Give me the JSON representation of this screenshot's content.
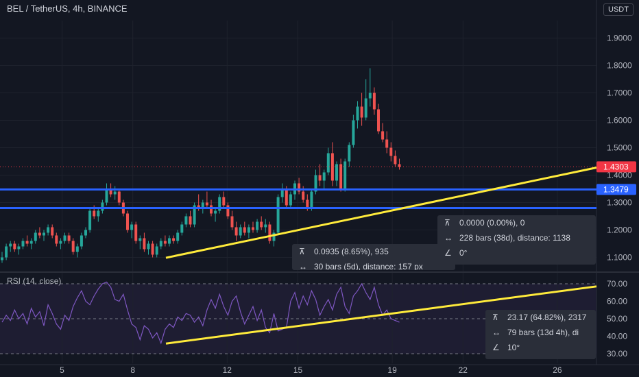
{
  "header": {
    "symbol_title": "BEL / TetherUS, 4h, BINANCE",
    "currency_button": "USDT"
  },
  "rsi": {
    "title": "RSI (14, close)"
  },
  "measurements": [
    {
      "price_change": "0.0935 (8.65%), 935",
      "range": "30 bars (5d), distance: 157 px",
      "angle": ""
    },
    {
      "price_change": "0.0000 (0.00%), 0",
      "range": "228 bars (38d), distance: 1138",
      "angle": "0°"
    },
    {
      "price_change": "23.17 (64.82%), 2317",
      "range": "79 bars (13d 4h), di",
      "angle": "10°"
    }
  ],
  "colors": {
    "bg": "#131722",
    "up": "#26a69a",
    "down": "#ef5350",
    "level_line": "#2962ff",
    "trendline": "#ffeb3b",
    "rsi_line": "#7e57c2",
    "last_price": "#f23645"
  },
  "chart_data": [
    {
      "type": "candlestick",
      "title": "BEL / TetherUS, 4h, BINANCE",
      "yaxis_ticks": [
        "1.9000",
        "1.8000",
        "1.7000",
        "1.6000",
        "1.5000",
        "1.4000",
        "1.3000",
        "1.2000",
        "1.1000"
      ],
      "ylim": [
        1.05,
        1.95
      ],
      "xaxis_ticks": [
        "5",
        "8",
        "12",
        "15",
        "19",
        "22",
        "26"
      ],
      "last_price": 1.4303,
      "horizontal_levels": [
        1.3479,
        1.28
      ],
      "price_labels": [
        "1.4303",
        "1.3479"
      ],
      "trendline": {
        "from": [
          "Nov 9",
          1.0985
        ],
        "to": [
          "Nov 28",
          1.4275
        ]
      },
      "candles": [
        [
          1.09,
          1.12,
          1.08,
          1.1
        ],
        [
          1.1,
          1.15,
          1.09,
          1.14
        ],
        [
          1.14,
          1.16,
          1.12,
          1.15
        ],
        [
          1.15,
          1.16,
          1.12,
          1.13
        ],
        [
          1.13,
          1.15,
          1.11,
          1.14
        ],
        [
          1.14,
          1.17,
          1.13,
          1.16
        ],
        [
          1.16,
          1.18,
          1.14,
          1.15
        ],
        [
          1.15,
          1.17,
          1.13,
          1.16
        ],
        [
          1.16,
          1.2,
          1.15,
          1.19
        ],
        [
          1.19,
          1.21,
          1.17,
          1.18
        ],
        [
          1.18,
          1.2,
          1.16,
          1.19
        ],
        [
          1.19,
          1.22,
          1.18,
          1.21
        ],
        [
          1.21,
          1.22,
          1.17,
          1.18
        ],
        [
          1.18,
          1.19,
          1.14,
          1.15
        ],
        [
          1.15,
          1.17,
          1.13,
          1.16
        ],
        [
          1.16,
          1.19,
          1.15,
          1.18
        ],
        [
          1.18,
          1.19,
          1.15,
          1.16
        ],
        [
          1.16,
          1.17,
          1.11,
          1.12
        ],
        [
          1.12,
          1.15,
          1.1,
          1.14
        ],
        [
          1.14,
          1.19,
          1.13,
          1.18
        ],
        [
          1.18,
          1.21,
          1.17,
          1.2
        ],
        [
          1.2,
          1.28,
          1.19,
          1.27
        ],
        [
          1.27,
          1.29,
          1.24,
          1.25
        ],
        [
          1.25,
          1.28,
          1.23,
          1.27
        ],
        [
          1.27,
          1.31,
          1.26,
          1.3
        ],
        [
          1.3,
          1.37,
          1.29,
          1.35
        ],
        [
          1.35,
          1.37,
          1.32,
          1.33
        ],
        [
          1.33,
          1.36,
          1.31,
          1.34
        ],
        [
          1.34,
          1.35,
          1.29,
          1.3
        ],
        [
          1.3,
          1.31,
          1.25,
          1.26
        ],
        [
          1.26,
          1.27,
          1.19,
          1.2
        ],
        [
          1.2,
          1.23,
          1.17,
          1.22
        ],
        [
          1.22,
          1.23,
          1.15,
          1.16
        ],
        [
          1.16,
          1.18,
          1.13,
          1.17
        ],
        [
          1.17,
          1.19,
          1.12,
          1.13
        ],
        [
          1.13,
          1.16,
          1.11,
          1.15
        ],
        [
          1.15,
          1.16,
          1.1,
          1.11
        ],
        [
          1.11,
          1.15,
          1.1,
          1.14
        ],
        [
          1.14,
          1.17,
          1.13,
          1.16
        ],
        [
          1.16,
          1.18,
          1.14,
          1.15
        ],
        [
          1.15,
          1.18,
          1.14,
          1.17
        ],
        [
          1.17,
          1.18,
          1.15,
          1.16
        ],
        [
          1.16,
          1.2,
          1.15,
          1.19
        ],
        [
          1.19,
          1.23,
          1.18,
          1.22
        ],
        [
          1.22,
          1.26,
          1.21,
          1.25
        ],
        [
          1.25,
          1.27,
          1.21,
          1.22
        ],
        [
          1.22,
          1.3,
          1.21,
          1.29
        ],
        [
          1.29,
          1.33,
          1.27,
          1.28
        ],
        [
          1.28,
          1.31,
          1.26,
          1.3
        ],
        [
          1.3,
          1.34,
          1.28,
          1.29
        ],
        [
          1.29,
          1.31,
          1.25,
          1.26
        ],
        [
          1.26,
          1.28,
          1.23,
          1.27
        ],
        [
          1.27,
          1.33,
          1.26,
          1.32
        ],
        [
          1.32,
          1.34,
          1.28,
          1.29
        ],
        [
          1.29,
          1.3,
          1.24,
          1.25
        ],
        [
          1.25,
          1.27,
          1.2,
          1.21
        ],
        [
          1.21,
          1.23,
          1.16,
          1.18
        ],
        [
          1.18,
          1.22,
          1.17,
          1.21
        ],
        [
          1.21,
          1.23,
          1.18,
          1.19
        ],
        [
          1.19,
          1.22,
          1.17,
          1.21
        ],
        [
          1.21,
          1.23,
          1.19,
          1.2
        ],
        [
          1.2,
          1.24,
          1.19,
          1.23
        ],
        [
          1.23,
          1.25,
          1.2,
          1.21
        ],
        [
          1.21,
          1.24,
          1.19,
          1.22
        ],
        [
          1.22,
          1.23,
          1.15,
          1.16
        ],
        [
          1.16,
          1.2,
          1.14,
          1.19
        ],
        [
          1.19,
          1.33,
          1.18,
          1.32
        ],
        [
          1.32,
          1.37,
          1.3,
          1.35
        ],
        [
          1.35,
          1.36,
          1.28,
          1.29
        ],
        [
          1.29,
          1.34,
          1.28,
          1.33
        ],
        [
          1.33,
          1.38,
          1.31,
          1.37
        ],
        [
          1.37,
          1.39,
          1.33,
          1.34
        ],
        [
          1.34,
          1.36,
          1.3,
          1.31
        ],
        [
          1.31,
          1.33,
          1.27,
          1.28
        ],
        [
          1.28,
          1.35,
          1.27,
          1.34
        ],
        [
          1.34,
          1.42,
          1.33,
          1.4
        ],
        [
          1.4,
          1.44,
          1.36,
          1.38
        ],
        [
          1.38,
          1.42,
          1.35,
          1.41
        ],
        [
          1.41,
          1.5,
          1.4,
          1.48
        ],
        [
          1.48,
          1.52,
          1.36,
          1.38
        ],
        [
          1.38,
          1.45,
          1.36,
          1.44
        ],
        [
          1.44,
          1.46,
          1.34,
          1.35
        ],
        [
          1.35,
          1.46,
          1.34,
          1.45
        ],
        [
          1.45,
          1.52,
          1.43,
          1.51
        ],
        [
          1.51,
          1.62,
          1.5,
          1.6
        ],
        [
          1.6,
          1.67,
          1.57,
          1.65
        ],
        [
          1.65,
          1.7,
          1.58,
          1.61
        ],
        [
          1.61,
          1.75,
          1.6,
          1.68
        ],
        [
          1.68,
          1.79,
          1.65,
          1.7
        ],
        [
          1.7,
          1.72,
          1.62,
          1.64
        ],
        [
          1.64,
          1.66,
          1.55,
          1.56
        ],
        [
          1.56,
          1.59,
          1.52,
          1.53
        ],
        [
          1.53,
          1.56,
          1.48,
          1.5
        ],
        [
          1.5,
          1.52,
          1.45,
          1.47
        ],
        [
          1.47,
          1.49,
          1.43,
          1.44
        ],
        [
          1.44,
          1.46,
          1.42,
          1.43
        ]
      ]
    },
    {
      "type": "line",
      "title": "RSI (14, close)",
      "yaxis_ticks": [
        "70.00",
        "60.00",
        "50.00",
        "40.00",
        "30.00"
      ],
      "ylim": [
        25,
        75
      ],
      "bands": [
        70,
        50,
        30
      ],
      "values": [
        48,
        52,
        49,
        55,
        50,
        53,
        47,
        56,
        51,
        54,
        46,
        58,
        53,
        47,
        44,
        52,
        49,
        57,
        62,
        66,
        60,
        58,
        63,
        67,
        70,
        71,
        68,
        61,
        60,
        64,
        55,
        47,
        45,
        38,
        46,
        44,
        39,
        42,
        36,
        44,
        47,
        45,
        51,
        49,
        53,
        52,
        48,
        51,
        46,
        55,
        61,
        56,
        64,
        57,
        52,
        60,
        63,
        54,
        47,
        52,
        57,
        49,
        55,
        45,
        42,
        53,
        43,
        44,
        45,
        60,
        65,
        56,
        63,
        58,
        66,
        61,
        52,
        57,
        61,
        55,
        64,
        68,
        57,
        53,
        63,
        66,
        70,
        65,
        61,
        68,
        58,
        52,
        55,
        50,
        49,
        48
      ],
      "trendline": {
        "from": [
          "Nov 9",
          35.8
        ],
        "to": [
          "Nov 28",
          68.5
        ]
      }
    }
  ]
}
